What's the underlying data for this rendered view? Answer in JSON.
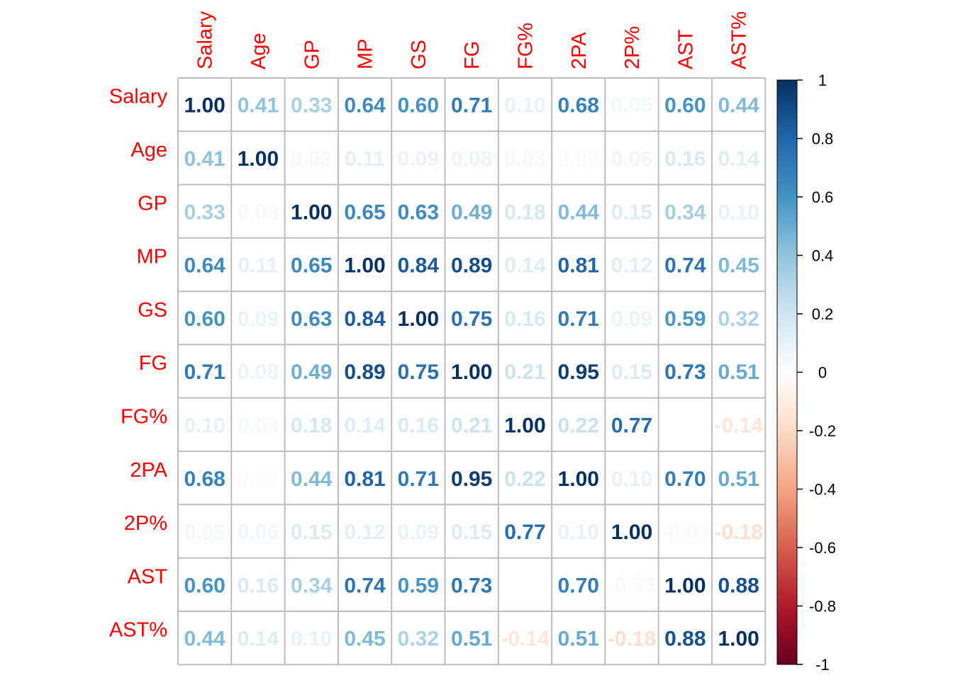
{
  "chart_data": {
    "type": "heatmap",
    "title": "",
    "variables": [
      "Salary",
      "Age",
      "GP",
      "MP",
      "GS",
      "FG",
      "FG%",
      "2PA",
      "2P%",
      "AST",
      "AST%"
    ],
    "matrix": [
      [
        1.0,
        0.41,
        0.33,
        0.64,
        0.6,
        0.71,
        0.1,
        0.68,
        0.05,
        0.6,
        0.44
      ],
      [
        0.41,
        1.0,
        0.03,
        0.11,
        0.09,
        0.08,
        0.03,
        0.02,
        0.06,
        0.16,
        0.14
      ],
      [
        0.33,
        0.03,
        1.0,
        0.65,
        0.63,
        0.49,
        0.18,
        0.44,
        0.15,
        0.34,
        0.1
      ],
      [
        0.64,
        0.11,
        0.65,
        1.0,
        0.84,
        0.89,
        0.14,
        0.81,
        0.12,
        0.74,
        0.45
      ],
      [
        0.6,
        0.09,
        0.63,
        0.84,
        1.0,
        0.75,
        0.16,
        0.71,
        0.09,
        0.59,
        0.32
      ],
      [
        0.71,
        0.08,
        0.49,
        0.89,
        0.75,
        1.0,
        0.21,
        0.95,
        0.15,
        0.73,
        0.51
      ],
      [
        0.1,
        0.03,
        0.18,
        0.14,
        0.16,
        0.21,
        1.0,
        0.22,
        0.77,
        0.0,
        -0.14
      ],
      [
        0.68,
        0.02,
        0.44,
        0.81,
        0.71,
        0.95,
        0.22,
        1.0,
        0.1,
        0.7,
        0.51
      ],
      [
        0.05,
        0.06,
        0.15,
        0.12,
        0.09,
        0.15,
        0.77,
        0.1,
        1.0,
        -0.03,
        -0.18
      ],
      [
        0.6,
        0.16,
        0.34,
        0.74,
        0.59,
        0.73,
        0.0,
        0.7,
        -0.03,
        1.0,
        0.88
      ],
      [
        0.44,
        0.14,
        0.1,
        0.45,
        0.32,
        0.51,
        -0.14,
        0.51,
        -0.18,
        0.88,
        1.0
      ]
    ],
    "value_range": [
      -1,
      1
    ],
    "legend": {
      "position": "right",
      "ticks": [
        "1",
        "0.8",
        "0.6",
        "0.4",
        "0.2",
        "0",
        "-0.2",
        "-0.4",
        "-0.6",
        "-0.8",
        "-1"
      ],
      "tick_values": [
        1,
        0.8,
        0.6,
        0.4,
        0.2,
        0,
        -0.2,
        -0.4,
        -0.6,
        -0.8,
        -1
      ]
    },
    "colors": {
      "label": "#ff0000",
      "grid": "#bebebe",
      "scale": [
        "#67001f",
        "#b2182b",
        "#d6604d",
        "#f4a582",
        "#fddbc7",
        "#ffffff",
        "#d1e5f0",
        "#92c5de",
        "#4393c3",
        "#2166ac",
        "#053061"
      ]
    }
  }
}
